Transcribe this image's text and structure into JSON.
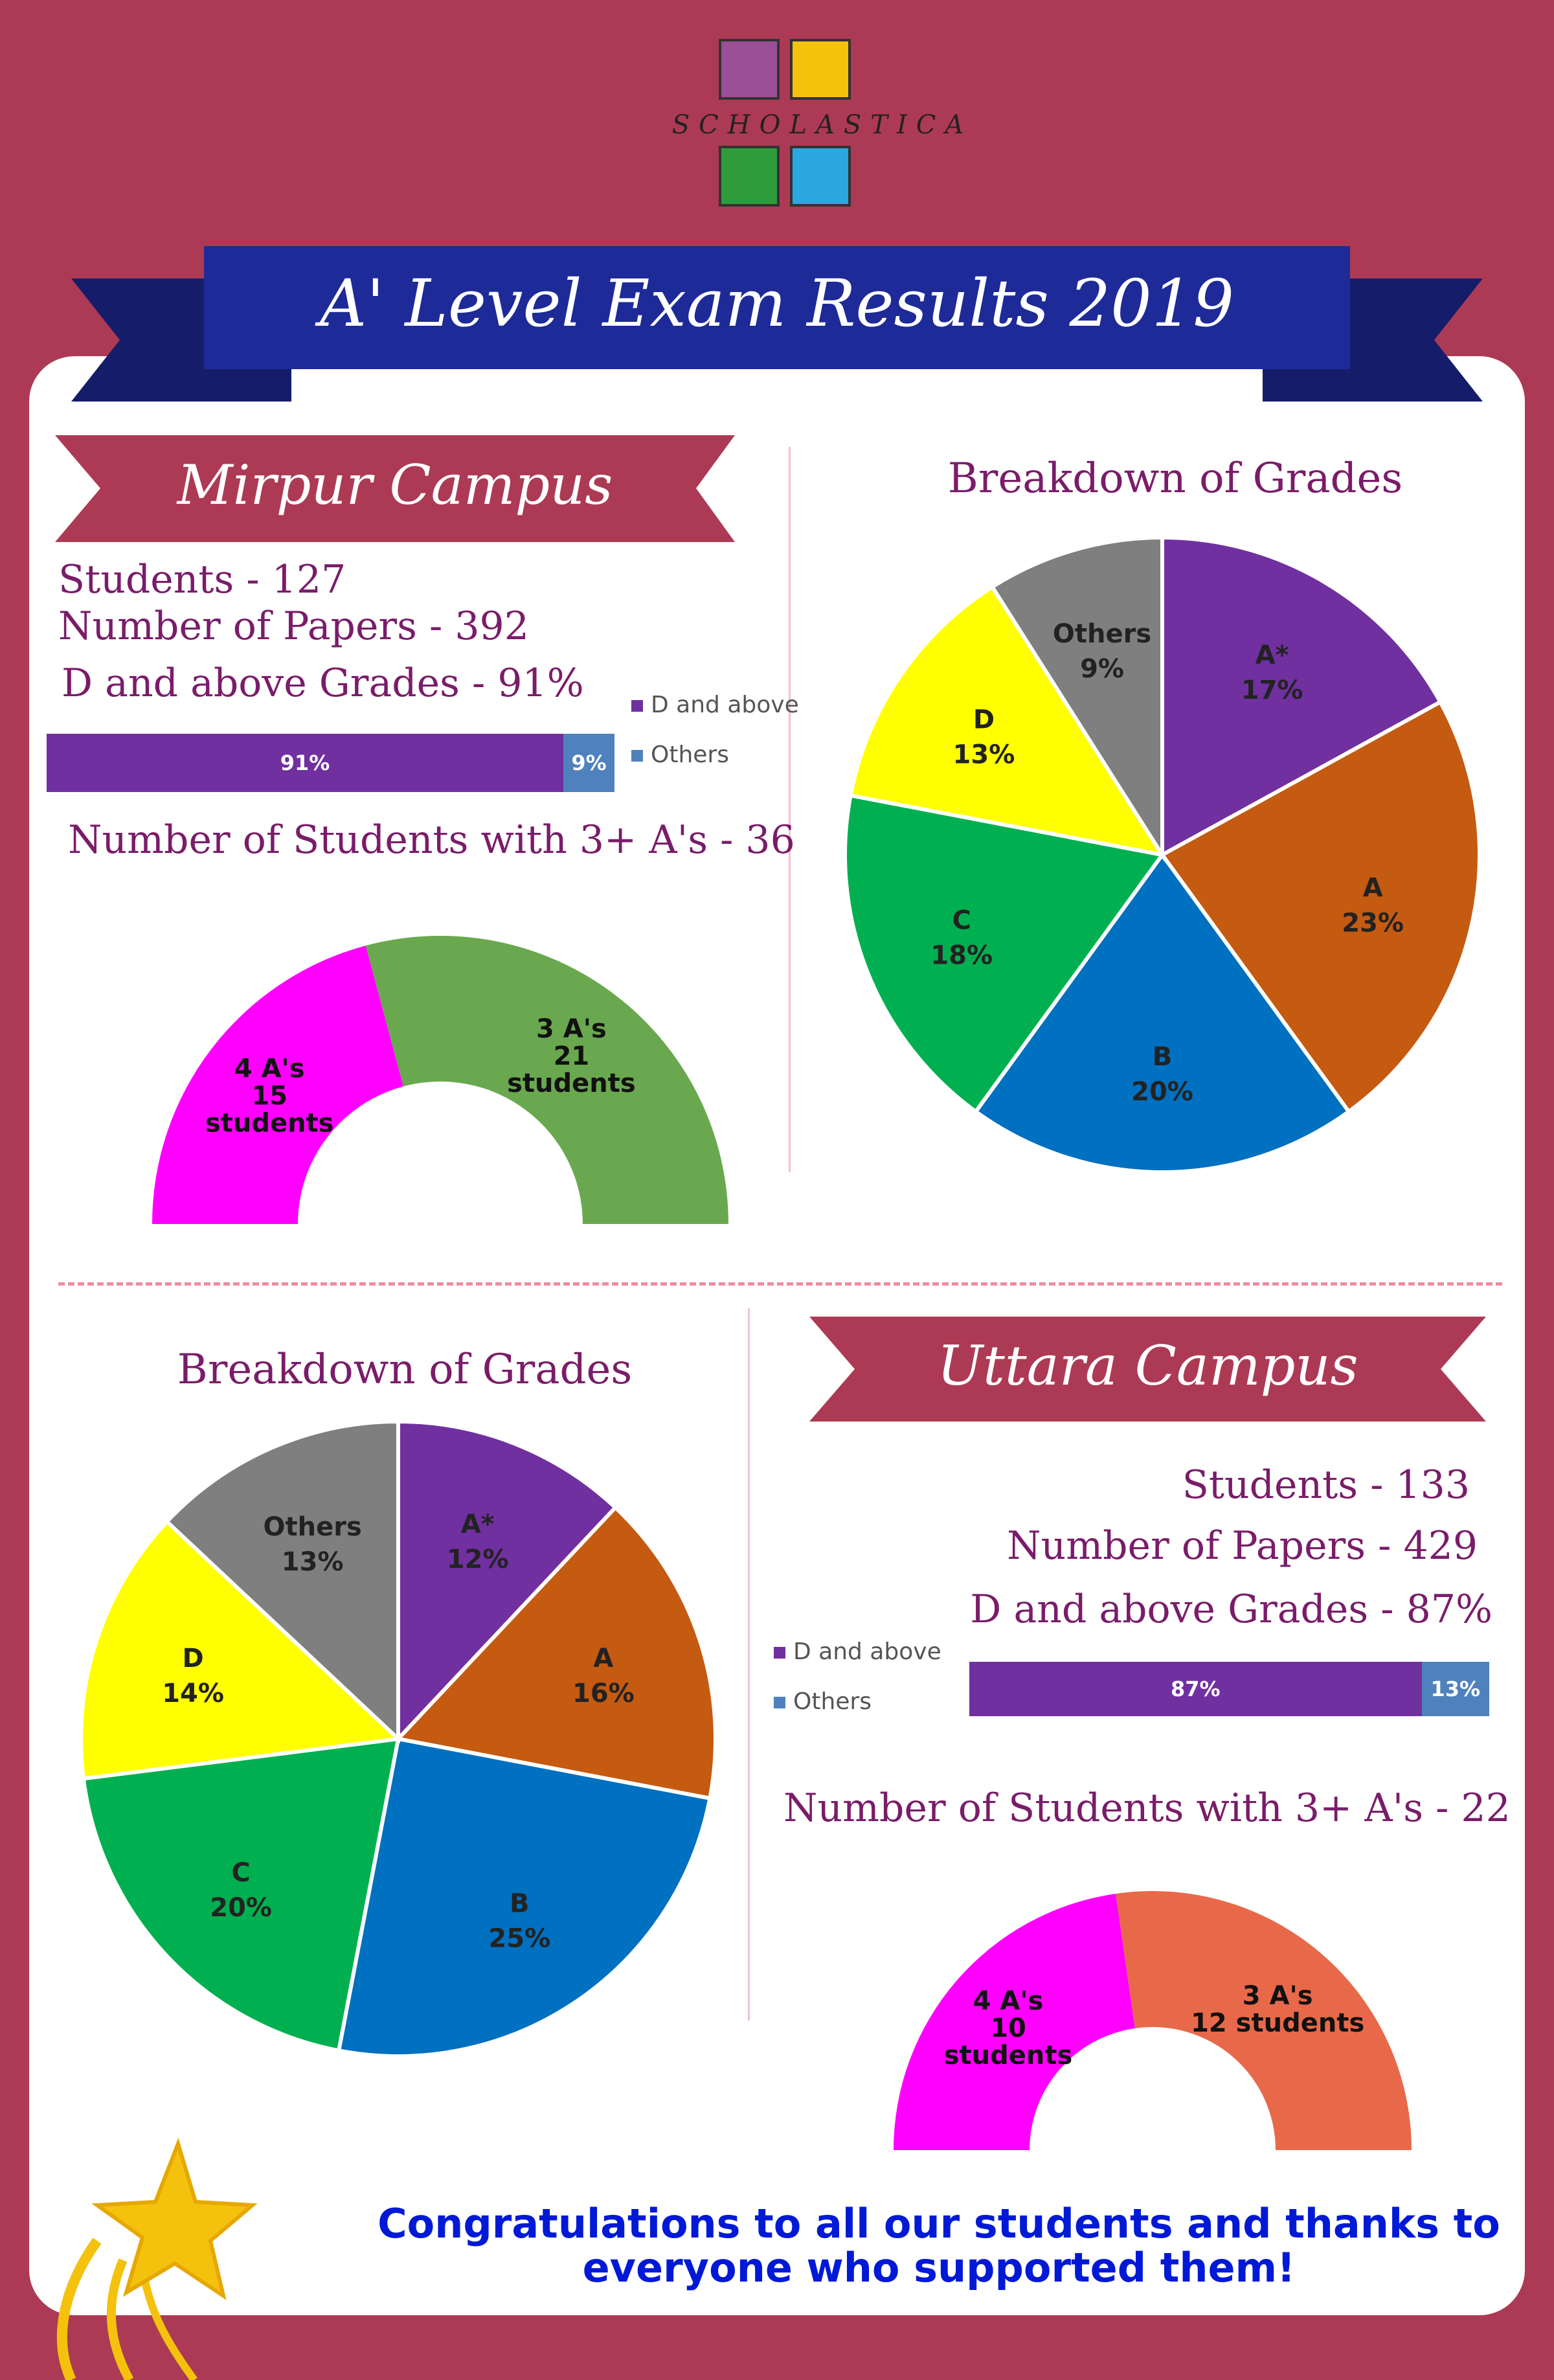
{
  "logo": {
    "text": "SCHOLASTICA"
  },
  "banner": {
    "title": "A' Level Exam Results 2019"
  },
  "colors": {
    "background": "#ad3a54",
    "banner": "#1d2a97",
    "purple": "#7030a0",
    "blue_bar": "#4f81bd"
  },
  "mirpur": {
    "campus": "Mirpur Campus",
    "students": "Students - 127",
    "papers": "Number of Papers - 392",
    "d_above": "D and above Grades - 91%",
    "legend_d": "D and above",
    "legend_others": "Others",
    "bar_d_label": "91%",
    "bar_others_label": "9%",
    "three_plus": "Number of Students with 3+ A's - 36",
    "breakdown_title": "Breakdown of Grades"
  },
  "uttara": {
    "campus": "Uttara Campus",
    "students": "Students - 133",
    "papers": "Number of Papers - 429",
    "d_above": "D and above Grades - 87%",
    "legend_d": "D and above",
    "legend_others": "Others",
    "bar_d_label": "87%",
    "bar_others_label": "13%",
    "three_plus": "Number of Students with 3+ A's - 22",
    "breakdown_title": "Breakdown of Grades"
  },
  "congrats": "Congratulations to all our students and thanks to everyone who supported them!",
  "chart_data": [
    {
      "id": "mirpur_pass_bar",
      "type": "bar",
      "orientation": "horizontal-stacked",
      "series": [
        {
          "name": "D and above",
          "values": [
            91
          ],
          "color": "#7030a0"
        },
        {
          "name": "Others",
          "values": [
            9
          ],
          "color": "#4f81bd"
        }
      ],
      "legend": "right"
    },
    {
      "id": "mirpur_grades_pie",
      "type": "pie",
      "title": "Breakdown of Grades",
      "labels": [
        "A*",
        "A",
        "B",
        "C",
        "D",
        "Others"
      ],
      "values": [
        17,
        23,
        20,
        18,
        13,
        9
      ],
      "colors": [
        "#7030a0",
        "#c55a11",
        "#0070c0",
        "#00b050",
        "#ffff00",
        "#7f7f7f"
      ]
    },
    {
      "id": "mirpur_3plus_donut",
      "type": "pie",
      "subtype": "half-donut",
      "labels": [
        "4 A's",
        "3 A's"
      ],
      "values": [
        15,
        21
      ],
      "label_lines": [
        [
          "4 A's",
          "15",
          "students"
        ],
        [
          "3 A's",
          "21",
          "students"
        ]
      ],
      "colors": [
        "#ff00ff",
        "#6aa84f"
      ]
    },
    {
      "id": "uttara_grades_pie",
      "type": "pie",
      "title": "Breakdown of Grades",
      "labels": [
        "A*",
        "A",
        "B",
        "C",
        "D",
        "Others"
      ],
      "values": [
        12,
        16,
        25,
        20,
        14,
        13
      ],
      "colors": [
        "#7030a0",
        "#c55a11",
        "#0070c0",
        "#00b050",
        "#ffff00",
        "#7f7f7f"
      ]
    },
    {
      "id": "uttara_pass_bar",
      "type": "bar",
      "orientation": "horizontal-stacked",
      "series": [
        {
          "name": "D and above",
          "values": [
            87
          ],
          "color": "#7030a0"
        },
        {
          "name": "Others",
          "values": [
            13
          ],
          "color": "#4f81bd"
        }
      ],
      "legend": "left"
    },
    {
      "id": "uttara_3plus_donut",
      "type": "pie",
      "subtype": "half-donut",
      "labels": [
        "4 A's",
        "3 A's"
      ],
      "values": [
        10,
        12
      ],
      "label_lines": [
        [
          "4 A's",
          "10",
          "students"
        ],
        [
          "3 A's",
          "12 students"
        ]
      ],
      "colors": [
        "#ff00ff",
        "#e8694a"
      ]
    }
  ]
}
